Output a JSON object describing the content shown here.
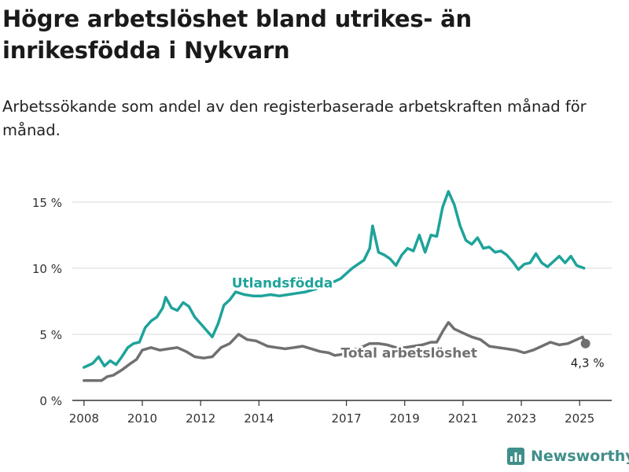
{
  "title": "Högre arbetslöshet bland utrikes- än inrikesfödda i Nykvarn",
  "subtitle": "Arbetssökande som andel av den registerbaserade arbetskraften månad för månad.",
  "colors": {
    "utlandsfodda": "#1ea39a",
    "total": "#707070",
    "grid": "#d9d9d9",
    "axis": "#333333"
  },
  "logo": {
    "text": "Newsworthy",
    "icon": "bar-chart-icon"
  },
  "chart_data": {
    "type": "line",
    "title": "",
    "xlabel": "",
    "ylabel": "",
    "ylim": [
      0,
      16
    ],
    "xlim": [
      2007.6,
      2026.1
    ],
    "grid": "horizontal",
    "y_ticks": [
      0,
      5,
      10,
      15
    ],
    "y_tick_labels": [
      "0 %",
      "5 %",
      "10 %",
      "15 %"
    ],
    "x_ticks": [
      2008,
      2010,
      2012,
      2014,
      2017,
      2019,
      2021,
      2023,
      2025
    ],
    "x_tick_labels": [
      "2008",
      "2010",
      "2012",
      "2014",
      "2017",
      "2019",
      "2021",
      "2023",
      "2025"
    ],
    "annotations": [
      {
        "series": "Total arbetslöshet",
        "text": "4,3 %",
        "x": 2025.2,
        "y": 4.3
      }
    ],
    "series": [
      {
        "name": "Utlandsfödda",
        "points": [
          [
            2008.0,
            2.5
          ],
          [
            2008.3,
            2.8
          ],
          [
            2008.5,
            3.3
          ],
          [
            2008.7,
            2.6
          ],
          [
            2008.9,
            3.0
          ],
          [
            2009.1,
            2.7
          ],
          [
            2009.3,
            3.3
          ],
          [
            2009.5,
            4.0
          ],
          [
            2009.7,
            4.3
          ],
          [
            2009.9,
            4.4
          ],
          [
            2010.1,
            5.5
          ],
          [
            2010.3,
            6.0
          ],
          [
            2010.5,
            6.3
          ],
          [
            2010.7,
            7.0
          ],
          [
            2010.8,
            7.8
          ],
          [
            2011.0,
            7.0
          ],
          [
            2011.2,
            6.8
          ],
          [
            2011.4,
            7.4
          ],
          [
            2011.6,
            7.1
          ],
          [
            2011.8,
            6.3
          ],
          [
            2012.0,
            5.8
          ],
          [
            2012.2,
            5.3
          ],
          [
            2012.4,
            4.8
          ],
          [
            2012.6,
            5.8
          ],
          [
            2012.8,
            7.2
          ],
          [
            2013.0,
            7.6
          ],
          [
            2013.2,
            8.2
          ],
          [
            2013.5,
            8.0
          ],
          [
            2013.8,
            7.9
          ],
          [
            2014.1,
            7.9
          ],
          [
            2014.4,
            8.0
          ],
          [
            2014.7,
            7.9
          ],
          [
            2015.0,
            8.0
          ],
          [
            2015.3,
            8.1
          ],
          [
            2015.6,
            8.2
          ],
          [
            2015.9,
            8.4
          ],
          [
            2016.2,
            8.6
          ],
          [
            2016.5,
            8.9
          ],
          [
            2016.8,
            9.2
          ],
          [
            2017.0,
            9.6
          ],
          [
            2017.2,
            10.0
          ],
          [
            2017.4,
            10.3
          ],
          [
            2017.6,
            10.6
          ],
          [
            2017.8,
            11.5
          ],
          [
            2017.9,
            13.2
          ],
          [
            2018.1,
            11.2
          ],
          [
            2018.3,
            11.0
          ],
          [
            2018.5,
            10.7
          ],
          [
            2018.7,
            10.2
          ],
          [
            2018.9,
            11.0
          ],
          [
            2019.1,
            11.5
          ],
          [
            2019.3,
            11.3
          ],
          [
            2019.5,
            12.5
          ],
          [
            2019.7,
            11.2
          ],
          [
            2019.9,
            12.5
          ],
          [
            2020.1,
            12.4
          ],
          [
            2020.3,
            14.6
          ],
          [
            2020.5,
            15.8
          ],
          [
            2020.7,
            14.8
          ],
          [
            2020.9,
            13.2
          ],
          [
            2021.1,
            12.1
          ],
          [
            2021.3,
            11.8
          ],
          [
            2021.5,
            12.3
          ],
          [
            2021.7,
            11.5
          ],
          [
            2021.9,
            11.6
          ],
          [
            2022.1,
            11.2
          ],
          [
            2022.3,
            11.3
          ],
          [
            2022.5,
            11.0
          ],
          [
            2022.7,
            10.5
          ],
          [
            2022.9,
            9.9
          ],
          [
            2023.1,
            10.3
          ],
          [
            2023.3,
            10.4
          ],
          [
            2023.5,
            11.1
          ],
          [
            2023.7,
            10.4
          ],
          [
            2023.9,
            10.1
          ],
          [
            2024.1,
            10.5
          ],
          [
            2024.3,
            10.9
          ],
          [
            2024.5,
            10.4
          ],
          [
            2024.7,
            10.9
          ],
          [
            2024.9,
            10.2
          ],
          [
            2025.15,
            10.0
          ]
        ]
      },
      {
        "name": "Total arbetslöshet",
        "points": [
          [
            2008.0,
            1.5
          ],
          [
            2008.3,
            1.5
          ],
          [
            2008.6,
            1.5
          ],
          [
            2008.8,
            1.8
          ],
          [
            2009.0,
            1.9
          ],
          [
            2009.3,
            2.3
          ],
          [
            2009.6,
            2.8
          ],
          [
            2009.8,
            3.1
          ],
          [
            2010.0,
            3.8
          ],
          [
            2010.3,
            4.0
          ],
          [
            2010.6,
            3.8
          ],
          [
            2010.9,
            3.9
          ],
          [
            2011.2,
            4.0
          ],
          [
            2011.5,
            3.7
          ],
          [
            2011.8,
            3.3
          ],
          [
            2012.1,
            3.2
          ],
          [
            2012.4,
            3.3
          ],
          [
            2012.7,
            4.0
          ],
          [
            2013.0,
            4.3
          ],
          [
            2013.3,
            5.0
          ],
          [
            2013.6,
            4.6
          ],
          [
            2013.9,
            4.5
          ],
          [
            2014.1,
            4.3
          ],
          [
            2014.3,
            4.1
          ],
          [
            2014.6,
            4.0
          ],
          [
            2014.9,
            3.9
          ],
          [
            2015.2,
            4.0
          ],
          [
            2015.5,
            4.1
          ],
          [
            2015.8,
            3.9
          ],
          [
            2016.1,
            3.7
          ],
          [
            2016.4,
            3.6
          ],
          [
            2016.6,
            3.4
          ],
          [
            2016.9,
            3.5
          ],
          [
            2017.2,
            3.8
          ],
          [
            2017.5,
            4.0
          ],
          [
            2017.8,
            4.3
          ],
          [
            2018.1,
            4.3
          ],
          [
            2018.4,
            4.2
          ],
          [
            2018.7,
            4.0
          ],
          [
            2019.0,
            4.0
          ],
          [
            2019.3,
            4.1
          ],
          [
            2019.6,
            4.2
          ],
          [
            2019.9,
            4.4
          ],
          [
            2020.1,
            4.4
          ],
          [
            2020.3,
            5.2
          ],
          [
            2020.5,
            5.9
          ],
          [
            2020.7,
            5.4
          ],
          [
            2021.0,
            5.1
          ],
          [
            2021.3,
            4.8
          ],
          [
            2021.6,
            4.6
          ],
          [
            2021.9,
            4.1
          ],
          [
            2022.2,
            4.0
          ],
          [
            2022.5,
            3.9
          ],
          [
            2022.8,
            3.8
          ],
          [
            2023.1,
            3.6
          ],
          [
            2023.4,
            3.8
          ],
          [
            2023.7,
            4.1
          ],
          [
            2024.0,
            4.4
          ],
          [
            2024.3,
            4.2
          ],
          [
            2024.6,
            4.3
          ],
          [
            2024.9,
            4.6
          ],
          [
            2025.1,
            4.8
          ],
          [
            2025.2,
            4.3
          ]
        ]
      }
    ],
    "series_labels": [
      {
        "series": "Utlandsfödda",
        "text": "Utlandsfödda",
        "x": 2014.8,
        "y": 8.9
      },
      {
        "series": "Total arbetslöshet",
        "text": "Total arbetslöshet",
        "x": 2019.15,
        "y": 3.6
      }
    ]
  }
}
